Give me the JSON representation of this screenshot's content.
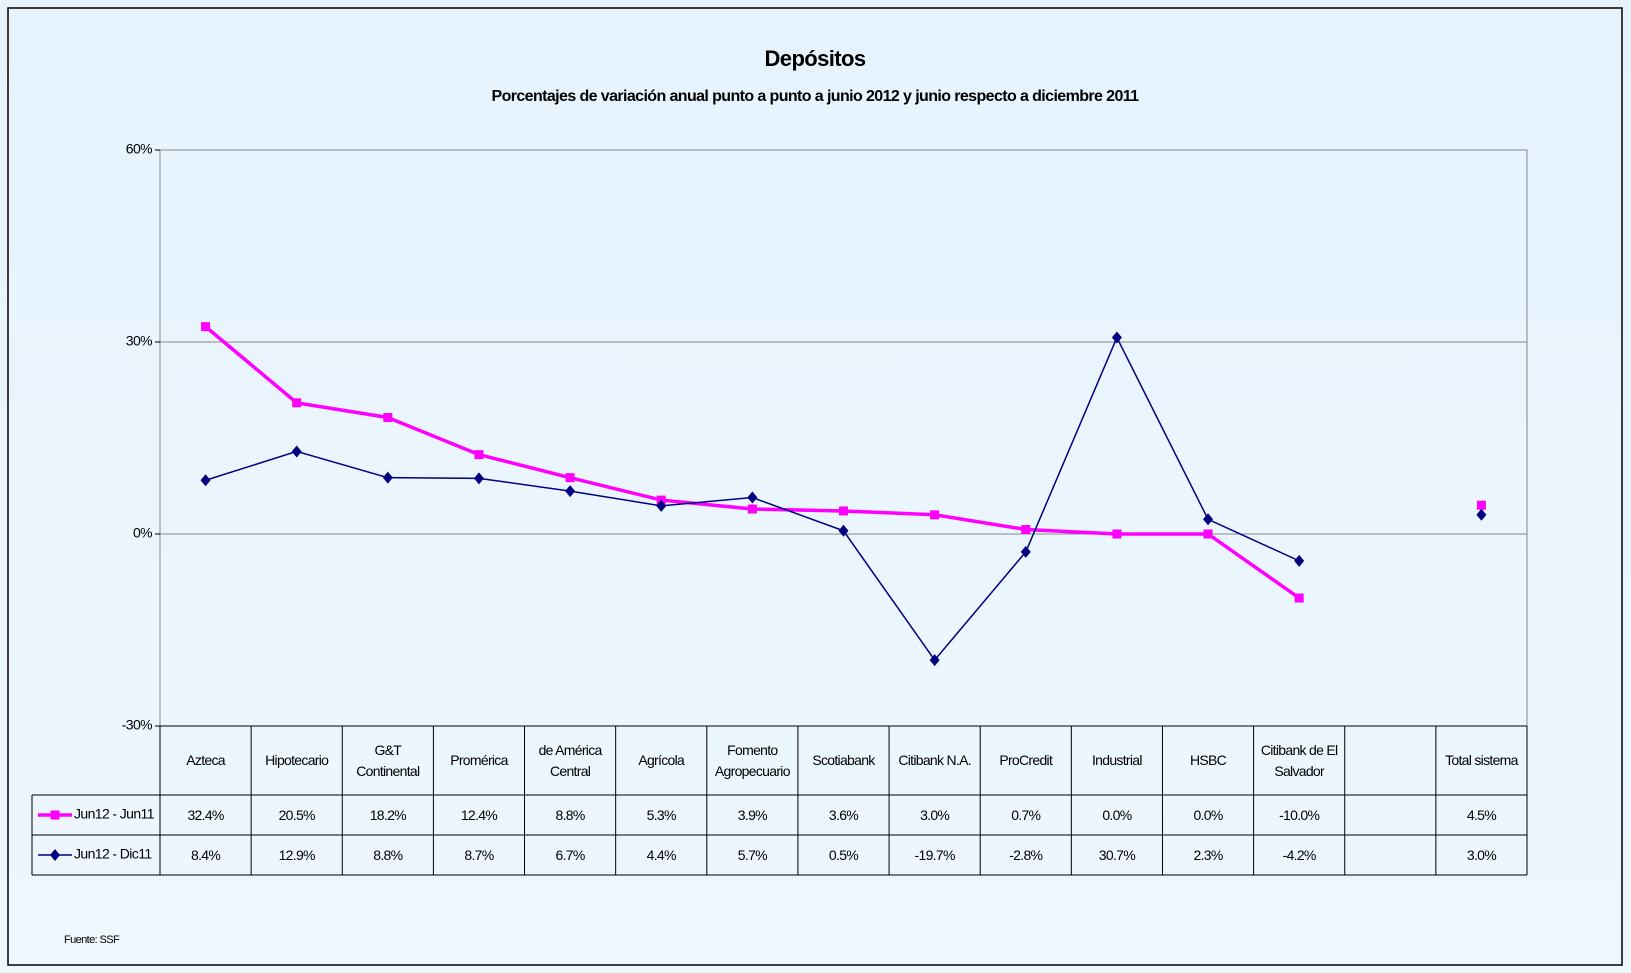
{
  "chart_data": {
    "type": "line",
    "title": "Depósitos",
    "subtitle": "Porcentajes de variación anual punto a punto a junio 2012 y junio respecto a diciembre 2011",
    "categories": [
      "Azteca",
      "Hipotecario",
      "G&T Continental",
      "Promérica",
      "de América Central",
      "Agrícola",
      "Fomento Agropecuario",
      "Scotiabank",
      "Citibank N.A.",
      "ProCredit",
      "Industrial",
      "HSBC",
      "Citibank de El Salvador",
      null,
      "Total sistema"
    ],
    "series": [
      {
        "name": "Jun12 - Jun11",
        "color": "#ff00ff",
        "marker": "square",
        "values": [
          32.4,
          20.5,
          18.2,
          12.4,
          8.8,
          5.3,
          3.9,
          3.6,
          3.0,
          0.7,
          0.0,
          0.0,
          -10.0,
          null,
          4.5
        ],
        "value_labels": [
          "32.4%",
          "20.5%",
          "18.2%",
          "12.4%",
          "8.8%",
          "5.3%",
          "3.9%",
          "3.6%",
          "3.0%",
          "0.7%",
          "0.0%",
          "0.0%",
          "-10.0%",
          null,
          "4.5%"
        ]
      },
      {
        "name": "Jun12 - Dic11",
        "color": "#000080",
        "marker": "diamond",
        "values": [
          8.4,
          12.9,
          8.8,
          8.7,
          6.7,
          4.4,
          5.7,
          0.5,
          -19.7,
          -2.8,
          30.7,
          2.3,
          -4.2,
          null,
          3.0
        ],
        "value_labels": [
          "8.4%",
          "12.9%",
          "8.8%",
          "8.7%",
          "6.7%",
          "4.4%",
          "5.7%",
          "0.5%",
          "-19.7%",
          "-2.8%",
          "30.7%",
          "2.3%",
          "-4.2%",
          null,
          "3.0%"
        ]
      }
    ],
    "ylim": [
      -30,
      60
    ],
    "yticks": [
      {
        "value": -30,
        "label": "-30%"
      },
      {
        "value": 0,
        "label": "0%"
      },
      {
        "value": 30,
        "label": "30%"
      },
      {
        "value": 60,
        "label": "60%"
      }
    ],
    "grid": true,
    "source": "Fuente: SSF"
  }
}
